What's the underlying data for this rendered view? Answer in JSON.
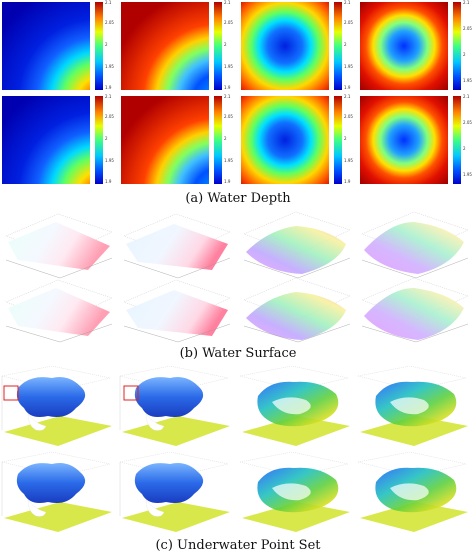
{
  "captions": {
    "a": "(a) Water Depth",
    "b": "(b) Water Surface",
    "c": "(c) Underwater Point Set"
  },
  "depth_colorbars": [
    [
      "2.1",
      "2.05",
      "2",
      "1.95",
      "1.9"
    ],
    [
      "2.1",
      "2.05",
      "2",
      "1.95",
      "1.9"
    ],
    [
      "2.1",
      "2.05",
      "2",
      "1.95",
      "1.9"
    ],
    [
      "2.1",
      "2.05",
      "2",
      "1.95"
    ],
    [
      "2.1",
      "2.05",
      "2",
      "1.95",
      "1.9"
    ],
    [
      "2.1",
      "2.05",
      "2",
      "1.95",
      "1.9"
    ],
    [
      "2.1",
      "2.05",
      "2",
      "1.95",
      "1.9"
    ],
    [
      "2.1",
      "2.05",
      "2",
      "1.95"
    ]
  ],
  "colors": {
    "colormap": "jet",
    "surface_hues": "pastel rainbow",
    "point_floor": "#d8e84a",
    "highlight_box": "#e02020"
  }
}
